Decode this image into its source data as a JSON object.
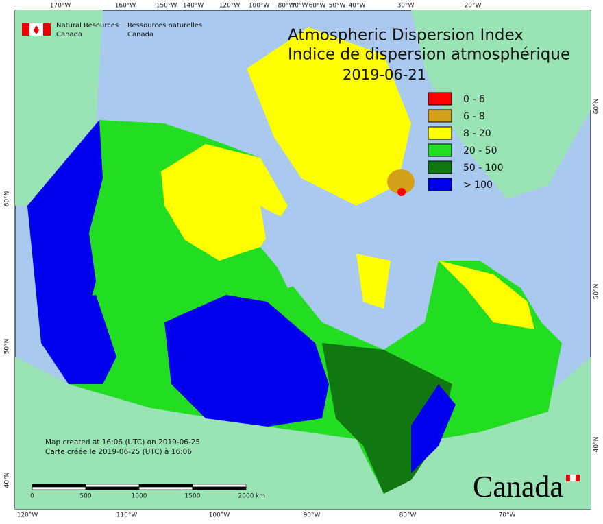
{
  "header": {
    "agency_en": [
      "Natural Resources",
      "Canada"
    ],
    "agency_fr": [
      "Ressources naturelles",
      "Canada"
    ]
  },
  "title": {
    "line1": "Atmospheric Dispersion Index",
    "line2": "Indice de dispersion atmosphérique",
    "date": "2019-06-21"
  },
  "legend": [
    {
      "label": "0 - 6",
      "color": "#ff0000"
    },
    {
      "label": "6 - 8",
      "color": "#d4a017"
    },
    {
      "label": "8 - 20",
      "color": "#ffff00"
    },
    {
      "label": "20 - 50",
      "color": "#22dd22"
    },
    {
      "label": "50 - 100",
      "color": "#117711"
    },
    {
      "label": "> 100",
      "color": "#0000ee"
    }
  ],
  "graticule": {
    "top": [
      "170°W",
      "160°W",
      "150°W",
      "140°W",
      "120°W",
      "100°W",
      "80°W",
      "70°W",
      "60°W",
      "50°W",
      "40°W",
      "30°W",
      "20°W"
    ],
    "bottom": [
      "120°W",
      "110°W",
      "100°W",
      "90°W",
      "80°W",
      "70°W"
    ],
    "left": [
      "60°N",
      "50°N",
      "40°N"
    ],
    "right": [
      "60°N",
      "50°N",
      "40°N"
    ]
  },
  "notes": [
    "Map created at 16:06 (UTC) on 2019-06-25",
    "Carte créée le 2019-06-25 (UTC) à 16:06"
  ],
  "scale": {
    "labels": [
      "0",
      "500",
      "1000",
      "1500",
      "2000"
    ],
    "unit": "km"
  },
  "wordmark": "Canada"
}
